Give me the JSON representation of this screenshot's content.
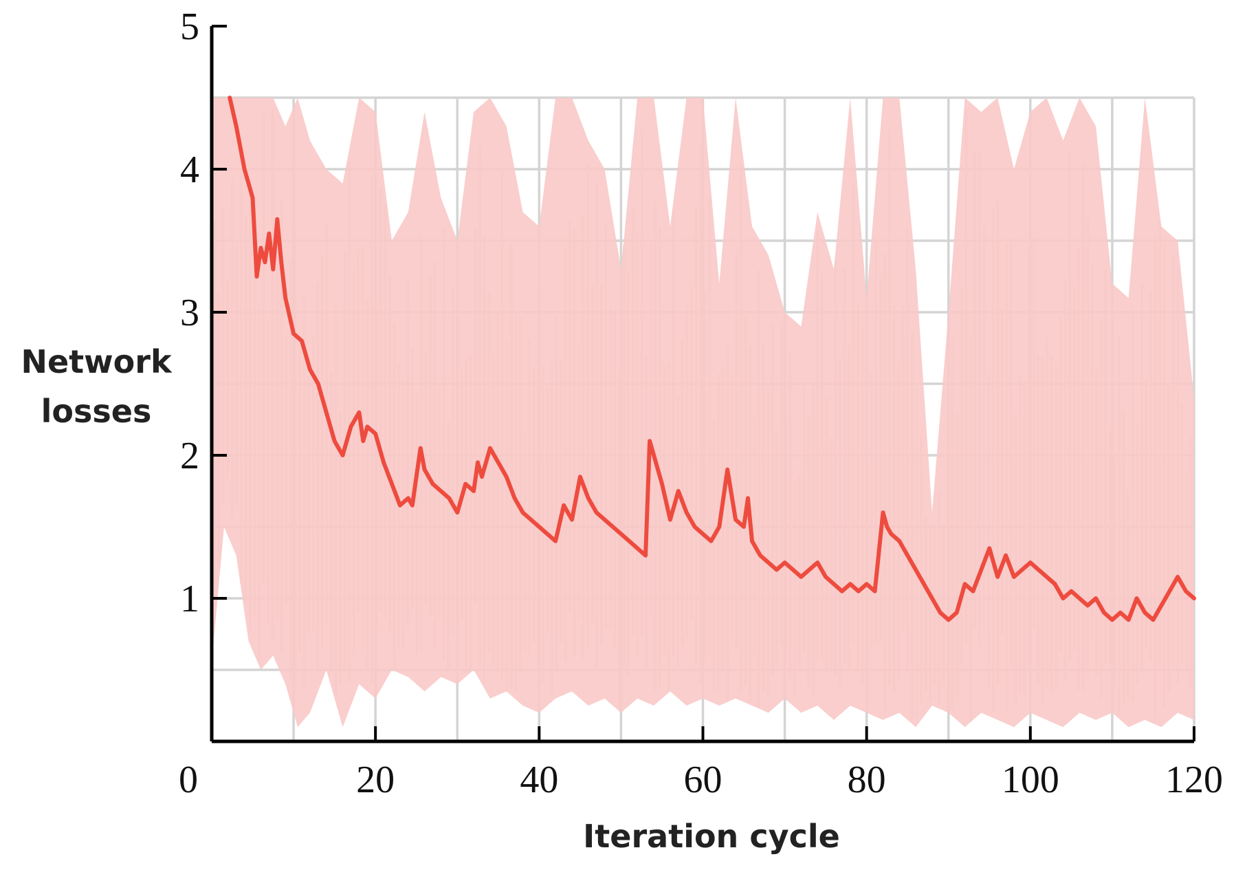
{
  "chart_data": {
    "type": "line",
    "title": "",
    "xlabel": "Iteration cycle",
    "ylabel_lines": [
      "Network",
      "losses"
    ],
    "xlim": [
      0,
      120
    ],
    "ylim": [
      0,
      5
    ],
    "x_ticks": [
      {
        "value": 0,
        "label": "0"
      },
      {
        "value": 20,
        "label": "20"
      },
      {
        "value": 40,
        "label": "40"
      },
      {
        "value": 60,
        "label": "60"
      },
      {
        "value": 80,
        "label": "80"
      },
      {
        "value": 100,
        "label": "100"
      },
      {
        "value": 120,
        "label": "120"
      }
    ],
    "y_ticks": [
      {
        "value": 1,
        "label": "1"
      },
      {
        "value": 2,
        "label": "2"
      },
      {
        "value": 3,
        "label": "3"
      },
      {
        "value": 4,
        "label": "4"
      },
      {
        "value": 5,
        "label": "5"
      }
    ],
    "grid": true,
    "grid_x_step": 10,
    "grid_y_step": 0.5,
    "grid_y_max": 4.5,
    "colors": {
      "smoothed_line": "#ee4b3f",
      "raw_band": "#f8c9c6",
      "grid": "#d4d4d4",
      "axis": "#000000"
    },
    "series": [
      {
        "role": "raw-loss-band",
        "x": [
          0,
          1.5,
          3,
          4.5,
          6,
          7.5,
          9,
          10.5,
          12,
          14,
          16,
          18,
          20,
          22,
          24,
          26,
          28,
          30,
          32,
          34,
          36,
          38,
          40,
          42,
          44,
          46,
          48,
          50,
          52,
          54,
          56,
          58,
          60,
          62,
          64,
          66,
          68,
          70,
          72,
          74,
          76,
          78,
          80,
          82,
          84,
          86,
          88,
          90,
          92,
          94,
          96,
          98,
          100,
          102,
          104,
          106,
          108,
          110,
          112,
          114,
          116,
          118,
          120
        ],
        "high": [
          4.5,
          4.5,
          4.5,
          4.5,
          4.5,
          4.5,
          4.3,
          4.5,
          4.2,
          4.0,
          3.9,
          4.5,
          4.4,
          3.5,
          3.7,
          4.4,
          3.8,
          3.5,
          4.4,
          4.5,
          4.3,
          3.7,
          3.6,
          4.5,
          4.5,
          4.2,
          4.0,
          3.3,
          4.5,
          4.5,
          3.6,
          4.5,
          4.5,
          3.2,
          4.5,
          3.6,
          3.4,
          3.0,
          2.9,
          3.7,
          3.3,
          4.5,
          3.1,
          4.5,
          4.5,
          3.3,
          1.6,
          3.0,
          4.5,
          4.4,
          4.5,
          4.0,
          4.4,
          4.5,
          4.2,
          4.5,
          4.3,
          3.2,
          3.1,
          4.5,
          3.6,
          3.5,
          2.4
        ],
        "low": [
          0.55,
          1.5,
          1.3,
          0.7,
          0.5,
          0.6,
          0.4,
          0.1,
          0.2,
          0.5,
          0.1,
          0.4,
          0.3,
          0.5,
          0.45,
          0.35,
          0.45,
          0.4,
          0.5,
          0.3,
          0.35,
          0.25,
          0.2,
          0.3,
          0.35,
          0.25,
          0.3,
          0.2,
          0.3,
          0.25,
          0.35,
          0.25,
          0.3,
          0.25,
          0.3,
          0.25,
          0.2,
          0.3,
          0.2,
          0.25,
          0.15,
          0.25,
          0.2,
          0.15,
          0.2,
          0.1,
          0.25,
          0.2,
          0.1,
          0.2,
          0.15,
          0.1,
          0.2,
          0.15,
          0.1,
          0.2,
          0.15,
          0.2,
          0.1,
          0.15,
          0.1,
          0.2,
          0.15
        ]
      },
      {
        "role": "smoothed-loss",
        "x": [
          2.2,
          3,
          4,
          5,
          5.5,
          6,
          6.5,
          7,
          7.5,
          8,
          8.5,
          9,
          10,
          11,
          12,
          13,
          14,
          15,
          16,
          17,
          17.5,
          18,
          18.5,
          19,
          20,
          21,
          22,
          23,
          24,
          24.5,
          25,
          25.5,
          26,
          27,
          28,
          29,
          30,
          31,
          32,
          32.5,
          33,
          34,
          35,
          36,
          37,
          38,
          39,
          40,
          41,
          42,
          43,
          44,
          45,
          46,
          47,
          48,
          49,
          50,
          51,
          52,
          53,
          53.5,
          54,
          55,
          56,
          57,
          58,
          59,
          60,
          61,
          62,
          63,
          64,
          65,
          65.5,
          66,
          67,
          68,
          69,
          70,
          71,
          72,
          73,
          74,
          75,
          76,
          77,
          78,
          79,
          80,
          81,
          82,
          82.5,
          83,
          84,
          85,
          86,
          87,
          88,
          89,
          90,
          91,
          92,
          93,
          94,
          95,
          96,
          97,
          98,
          99,
          100,
          101,
          102,
          103,
          104,
          105,
          106,
          107,
          108,
          109,
          110,
          111,
          112,
          113,
          114,
          115,
          116,
          117,
          118,
          119,
          120
        ],
        "y": [
          4.5,
          4.3,
          4.0,
          3.8,
          3.25,
          3.45,
          3.35,
          3.55,
          3.3,
          3.65,
          3.35,
          3.1,
          2.85,
          2.8,
          2.6,
          2.5,
          2.3,
          2.1,
          2.0,
          2.2,
          2.25,
          2.3,
          2.1,
          2.2,
          2.15,
          1.95,
          1.8,
          1.65,
          1.7,
          1.65,
          1.85,
          2.05,
          1.9,
          1.8,
          1.75,
          1.7,
          1.6,
          1.8,
          1.75,
          1.95,
          1.85,
          2.05,
          1.95,
          1.85,
          1.7,
          1.6,
          1.55,
          1.5,
          1.45,
          1.4,
          1.65,
          1.55,
          1.85,
          1.7,
          1.6,
          1.55,
          1.5,
          1.45,
          1.4,
          1.35,
          1.3,
          2.1,
          2.0,
          1.8,
          1.55,
          1.75,
          1.6,
          1.5,
          1.45,
          1.4,
          1.5,
          1.9,
          1.55,
          1.5,
          1.7,
          1.4,
          1.3,
          1.25,
          1.2,
          1.25,
          1.2,
          1.15,
          1.2,
          1.25,
          1.15,
          1.1,
          1.05,
          1.1,
          1.05,
          1.1,
          1.05,
          1.6,
          1.5,
          1.45,
          1.4,
          1.3,
          1.2,
          1.1,
          1.0,
          0.9,
          0.85,
          0.9,
          1.1,
          1.05,
          1.2,
          1.35,
          1.15,
          1.3,
          1.15,
          1.2,
          1.25,
          1.2,
          1.15,
          1.1,
          1.0,
          1.05,
          1.0,
          0.95,
          1.0,
          0.9,
          0.85,
          0.9,
          0.85,
          1.0,
          0.9,
          0.85,
          0.95,
          1.05,
          1.15,
          1.05,
          1.0
        ]
      }
    ]
  }
}
